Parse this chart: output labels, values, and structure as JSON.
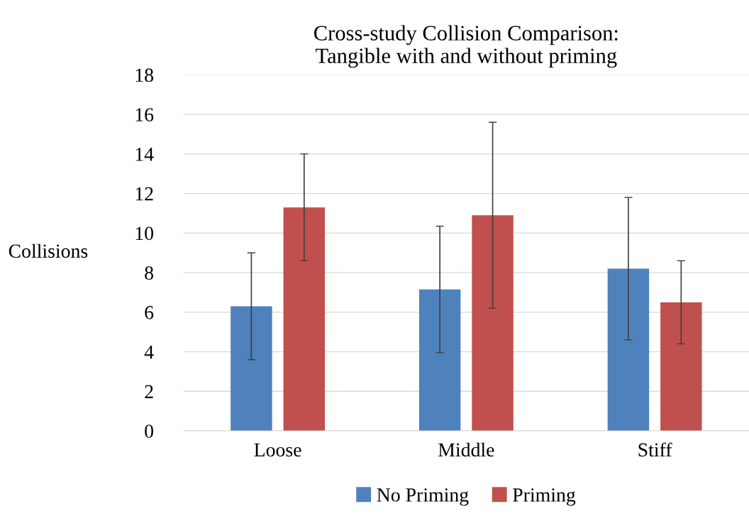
{
  "chart_data": {
    "type": "bar",
    "title": "Cross-study Collision Comparison:\nTangible with and without priming",
    "ylabel": "Collisions",
    "categories": [
      "Loose",
      "Middle",
      "Stiff"
    ],
    "series": [
      {
        "name": "No Priming",
        "color": "#4f81bd",
        "values": [
          6.3,
          7.15,
          8.2
        ],
        "errors": [
          2.7,
          3.2,
          3.6
        ]
      },
      {
        "name": "Priming",
        "color": "#c0504d",
        "values": [
          11.3,
          10.9,
          6.5
        ],
        "errors": [
          2.7,
          4.7,
          2.1
        ]
      }
    ],
    "ylim": [
      0,
      18
    ],
    "yticks": [
      0,
      2,
      4,
      6,
      8,
      10,
      12,
      14,
      16,
      18
    ],
    "grid": "y",
    "legend": "bottom"
  }
}
